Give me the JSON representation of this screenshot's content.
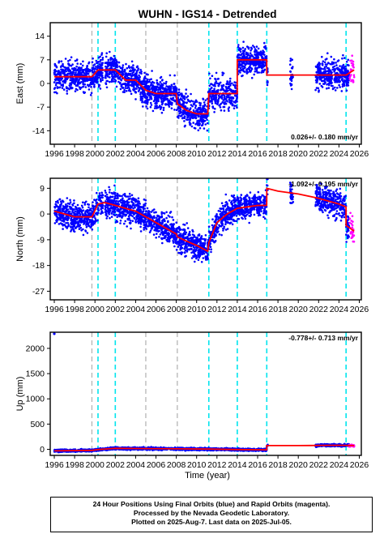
{
  "chart_data": {
    "title": "WUHN - IGS14 - Detrended",
    "xlabel": "Time (year)",
    "x_ticks": [
      "1996",
      "1998",
      "2000",
      "2002",
      "2004",
      "2006",
      "2008",
      "2010",
      "2012",
      "2014",
      "2016",
      "2018",
      "2020",
      "2022",
      "2024",
      "2026"
    ],
    "xlim": [
      1995.6,
      2026.2
    ],
    "colors": {
      "final_orbits": "#0000ff",
      "rapid_orbits": "#ff00ff",
      "model": "#ff0000",
      "antenna_change": "#00e5ee",
      "other_change": "#b0b0b0"
    },
    "antenna_changes": [
      2000.3,
      2002.0,
      2011.2,
      2014.0,
      2016.9,
      2024.7
    ],
    "other_changes": [
      1999.7,
      2005.0,
      2008.1
    ],
    "panels": [
      {
        "type": "scatter",
        "ylabel": "East (mm)",
        "ylim": [
          -18,
          18
        ],
        "y_ticks": [
          -14,
          -7,
          0,
          7,
          14
        ],
        "rate_text": "0.026+/- 0.180 mm/yr",
        "rate_position": "bottom-right",
        "data_spans": [
          [
            1996.0,
            2000.8
          ],
          [
            2001.0,
            2017.0
          ],
          [
            2019.2,
            2019.5
          ],
          [
            2021.7,
            2025.0
          ]
        ],
        "rapid_span": [
          2025.0,
          2025.5
        ],
        "scatter_sd": 2.2,
        "model": {
          "x": [
            1996.0,
            1997.0,
            1998.0,
            1999.0,
            1999.7,
            2000.3,
            2001.0,
            2002.0,
            2003.0,
            2004.0,
            2005.0,
            2006.0,
            2007.0,
            2008.0,
            2008.1,
            2009.0,
            2010.0,
            2011.1,
            2011.2,
            2012.0,
            2013.0,
            2013.99,
            2014.0,
            2015.0,
            2016.0,
            2016.89,
            2016.9,
            2018.0,
            2020.0,
            2022.0,
            2024.0,
            2024.69,
            2024.7,
            2025.5
          ],
          "y": [
            2.0,
            2.0,
            2.0,
            2.0,
            2.0,
            4.0,
            4.0,
            4.0,
            1.0,
            1.0,
            -2.0,
            -3.0,
            -3.0,
            -3.0,
            -6.0,
            -8.0,
            -9.0,
            -9.0,
            -3.0,
            -3.0,
            -3.0,
            -3.0,
            7.0,
            7.0,
            7.0,
            7.0,
            2.5,
            2.5,
            2.5,
            2.5,
            2.5,
            2.5,
            2.5,
            4.0
          ]
        }
      },
      {
        "type": "scatter",
        "ylabel": "North (mm)",
        "ylim": [
          -30,
          12.5
        ],
        "y_ticks": [
          -27,
          -18,
          -9,
          0,
          9
        ],
        "rate_text": "-1.092+/- 0.195 mm/yr",
        "rate_position": "top-right",
        "data_spans": [
          [
            1996.0,
            2000.8
          ],
          [
            2001.0,
            2017.0
          ],
          [
            2019.2,
            2019.5
          ],
          [
            2021.7,
            2025.0
          ]
        ],
        "rapid_span": [
          2025.0,
          2025.5
        ],
        "scatter_sd": 2.4,
        "model": {
          "x": [
            1996.0,
            1997.0,
            1998.0,
            1999.0,
            1999.7,
            2000.3,
            2001.0,
            2002.0,
            2003.0,
            2004.0,
            2005.0,
            2006.0,
            2007.0,
            2008.0,
            2008.1,
            2009.0,
            2010.0,
            2011.1,
            2011.2,
            2012.0,
            2013.0,
            2014.0,
            2015.0,
            2016.0,
            2016.89,
            2016.9,
            2018.0,
            2020.0,
            2022.0,
            2024.0,
            2024.69,
            2024.7,
            2025.5
          ],
          "y": [
            1.0,
            0.0,
            -1.0,
            -1.0,
            -1.0,
            3.5,
            4.0,
            3.0,
            2.0,
            1.0,
            -1.0,
            -3.0,
            -5.0,
            -7.0,
            -8.0,
            -9.5,
            -11.0,
            -13.0,
            -10.0,
            -3.0,
            0.0,
            2.0,
            2.5,
            3.0,
            3.0,
            9.0,
            8.0,
            7.0,
            5.5,
            3.5,
            2.5,
            -4.0,
            -6.0
          ]
        }
      },
      {
        "type": "scatter",
        "ylabel": "Up (mm)",
        "ylim": [
          -120,
          2320
        ],
        "y_ticks": [
          0,
          500,
          1000,
          1500,
          2000
        ],
        "rate_text": "-0.778+/- 0.713 mm/yr",
        "rate_position": "top-right",
        "data_spans": [
          [
            1996.0,
            2017.0
          ],
          [
            2021.7,
            2025.0
          ]
        ],
        "rapid_span": [
          2025.0,
          2025.5
        ],
        "scatter_sd": 12,
        "outlier": {
          "x": 1996.0,
          "y": 2290
        },
        "model": {
          "x": [
            1996.0,
            1999.7,
            2000.3,
            2002.0,
            2005.0,
            2008.0,
            2011.2,
            2014.0,
            2016.89,
            2016.9,
            2020.0,
            2024.0,
            2025.5
          ],
          "y": [
            -30.0,
            -20.0,
            -5.0,
            20.0,
            15.0,
            10.0,
            5.0,
            -5.0,
            -10.0,
            75.0,
            75.0,
            80.0,
            75.0
          ]
        }
      }
    ]
  },
  "footer": {
    "line1": "24 Hour Positions Using Final Orbits (blue) and Rapid Orbits (magenta).",
    "line2": "Processed by the Nevada Geodetic Laboratory.",
    "line3": "Plotted on 2025-Aug-7. Last data on 2025-Jul-05."
  }
}
